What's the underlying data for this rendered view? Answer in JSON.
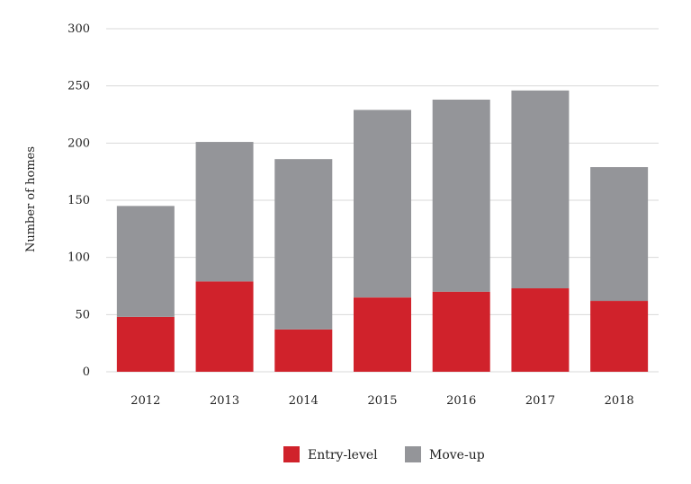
{
  "chart_data": {
    "type": "bar",
    "stacked": true,
    "categories": [
      "2012",
      "2013",
      "2014",
      "2015",
      "2016",
      "2017",
      "2018"
    ],
    "series": [
      {
        "name": "Entry-level",
        "color": "#d0222b",
        "values": [
          48,
          79,
          37,
          65,
          70,
          73,
          62
        ]
      },
      {
        "name": "Move-up",
        "color": "#949599",
        "values": [
          97,
          122,
          149,
          164,
          168,
          173,
          117
        ]
      }
    ],
    "ylabel": "Number of homes",
    "xlabel": "",
    "ylim": [
      0,
      300
    ],
    "yticks": [
      0,
      50,
      100,
      150,
      200,
      250,
      300
    ],
    "grid": "horizontal",
    "gridline_color": "#d9d9d9",
    "legend_position": "bottom-center"
  }
}
